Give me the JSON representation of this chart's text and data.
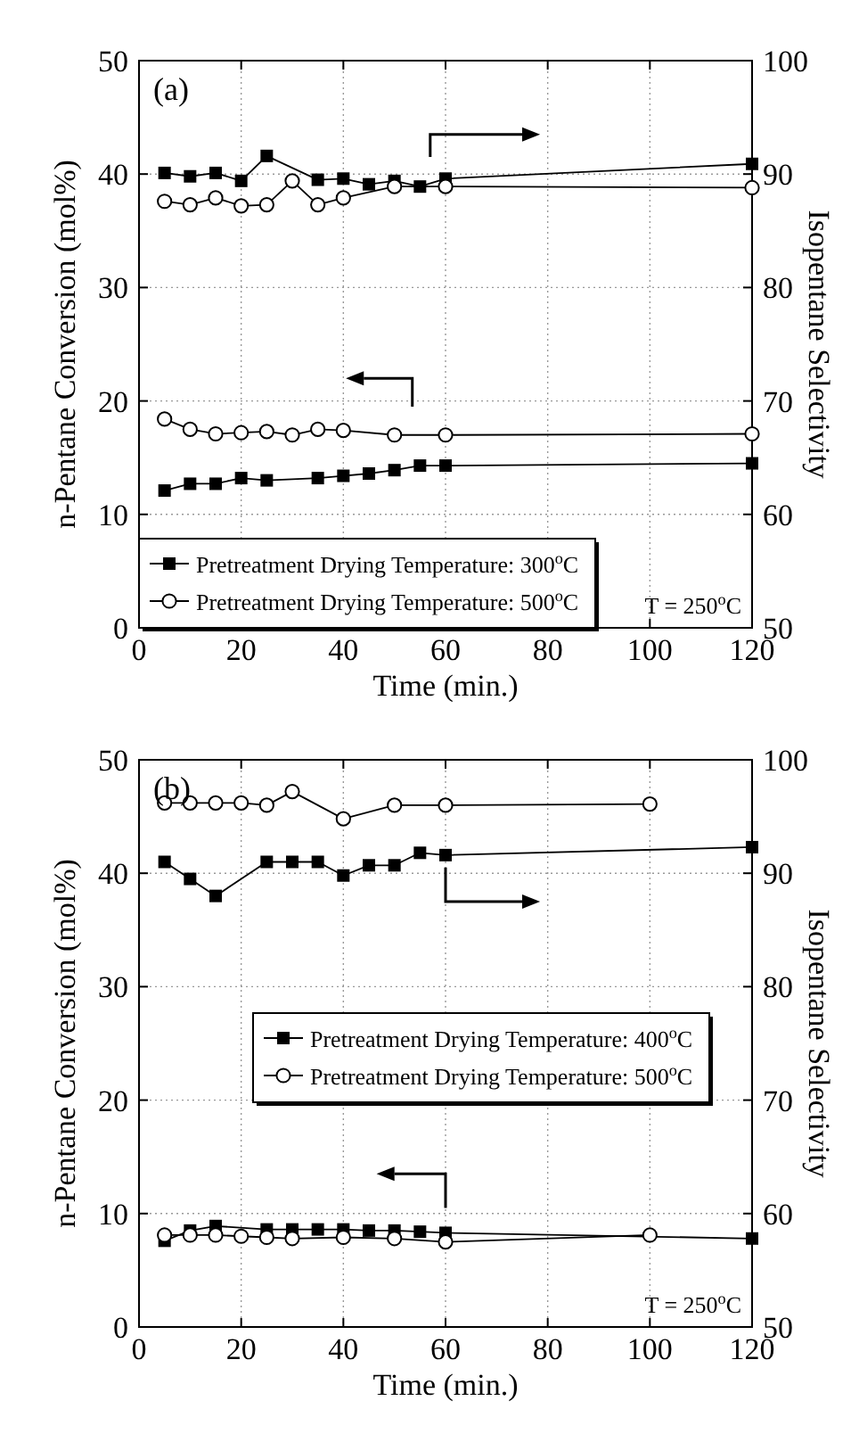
{
  "chart_data": [
    {
      "type": "line",
      "xlabel": "Time (min.)",
      "ylabel": "n-Pentane Conversion (mol%)",
      "y2label": "Isopentane Selectivity",
      "annotations": [
        "(a)",
        "T = 250$^{o}$C"
      ],
      "xlim": [
        0,
        120
      ],
      "xticks": [
        0,
        20,
        40,
        60,
        80,
        100,
        120
      ],
      "ylim": [
        0,
        50
      ],
      "yticks": [
        0,
        10,
        20,
        30,
        40,
        50
      ],
      "y2lim": [
        50,
        100
      ],
      "y2ticks": [
        50,
        60,
        70,
        80,
        90,
        100
      ],
      "grid": true,
      "legend": "bottom left",
      "series": [
        {
          "name": "Pretreatment Drying Temperature: 300$^{o}$C",
          "color": "#000000",
          "marker": "square",
          "axis": "y2",
          "x": [
            5,
            10,
            15,
            20,
            25,
            35,
            40,
            45,
            50,
            55,
            60,
            120
          ],
          "values": [
            90.1,
            89.8,
            90.1,
            89.4,
            91.6,
            89.5,
            89.6,
            89.1,
            89.4,
            88.9,
            89.6,
            90.9
          ]
        },
        {
          "name": "Pretreatment Drying Temperature: 500$^{o}$C",
          "color": "#000000",
          "marker": "circle",
          "axis": "y2",
          "x": [
            5,
            10,
            15,
            20,
            25,
            30,
            35,
            40,
            50,
            60,
            120
          ],
          "values": [
            87.6,
            87.3,
            87.9,
            87.2,
            87.3,
            89.4,
            87.3,
            87.9,
            88.9,
            88.9,
            88.8
          ]
        },
        {
          "color": "#000000",
          "marker": "square",
          "axis": "y",
          "x": [
            5,
            10,
            15,
            20,
            25,
            35,
            40,
            45,
            50,
            55,
            60,
            120
          ],
          "values": [
            12.1,
            12.7,
            12.7,
            13.2,
            13.0,
            13.2,
            13.4,
            13.6,
            13.9,
            14.3,
            14.3,
            14.5
          ]
        },
        {
          "color": "#000000",
          "marker": "circle",
          "axis": "y",
          "x": [
            5,
            10,
            15,
            20,
            25,
            30,
            35,
            40,
            50,
            60,
            120
          ],
          "values": [
            18.4,
            17.5,
            17.1,
            17.2,
            17.3,
            17.0,
            17.5,
            17.4,
            17.0,
            17.0,
            17.1
          ]
        }
      ]
    },
    {
      "type": "line",
      "xlabel": "Time (min.)",
      "ylabel": "n-Pentane Conversion (mol%)",
      "y2label": "Isopentane Selectivity",
      "annotations": [
        "(b)",
        "T = 250$^{o}$C"
      ],
      "xlim": [
        0,
        120
      ],
      "xticks": [
        0,
        20,
        40,
        60,
        80,
        100,
        120
      ],
      "ylim": [
        0,
        50
      ],
      "yticks": [
        0,
        10,
        20,
        30,
        40,
        50
      ],
      "y2lim": [
        50,
        100
      ],
      "y2ticks": [
        50,
        60,
        70,
        80,
        90,
        100
      ],
      "grid": true,
      "legend": "center",
      "series": [
        {
          "name": "Pretreatment Drying Temperature: 400$^{o}$C",
          "color": "#000000",
          "marker": "square",
          "axis": "y2",
          "x": [
            5,
            10,
            15,
            25,
            30,
            35,
            40,
            45,
            50,
            55,
            60,
            120
          ],
          "values": [
            91.0,
            89.5,
            88.0,
            91.0,
            91.0,
            91.0,
            89.8,
            90.7,
            90.7,
            91.8,
            91.6,
            92.3
          ]
        },
        {
          "name": "Pretreatment Drying Temperature: 500$^{o}$C",
          "color": "#000000",
          "marker": "circle",
          "axis": "y2",
          "x": [
            5,
            10,
            15,
            20,
            25,
            30,
            40,
            50,
            60,
            100
          ],
          "values": [
            96.2,
            96.2,
            96.2,
            96.2,
            96.0,
            97.2,
            94.8,
            96.0,
            96.0,
            96.1
          ]
        },
        {
          "color": "#000000",
          "marker": "square",
          "axis": "y",
          "x": [
            5,
            10,
            15,
            25,
            30,
            35,
            40,
            45,
            50,
            55,
            60,
            120
          ],
          "values": [
            7.6,
            8.5,
            8.9,
            8.6,
            8.6,
            8.6,
            8.6,
            8.5,
            8.5,
            8.4,
            8.3,
            7.8
          ]
        },
        {
          "color": "#000000",
          "marker": "circle",
          "axis": "y",
          "x": [
            5,
            10,
            15,
            20,
            25,
            30,
            40,
            50,
            60,
            100
          ],
          "values": [
            8.1,
            8.1,
            8.1,
            8.0,
            7.9,
            7.8,
            7.9,
            7.8,
            7.5,
            8.1
          ]
        }
      ]
    }
  ]
}
